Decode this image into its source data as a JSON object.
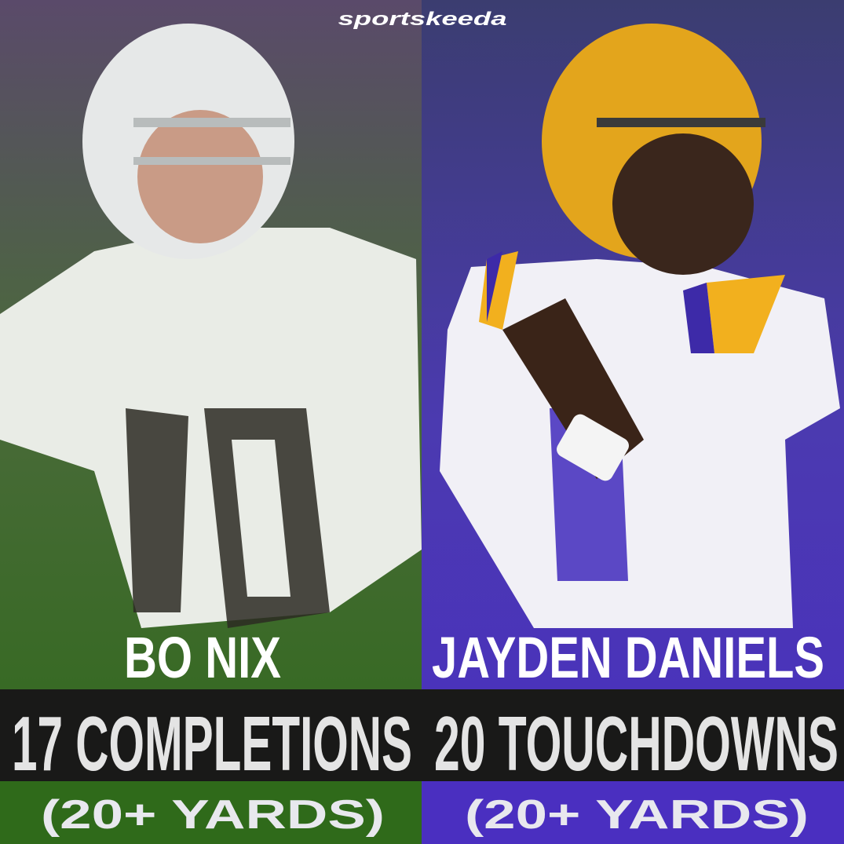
{
  "brand": "sportskeeda",
  "left": {
    "name": "BO NIX",
    "stat": "17 COMPLETIONS",
    "note": "(20+ YARDS)"
  },
  "right": {
    "name": "JAYDEN DANIELS",
    "stat": "20 TOUCHDOWNS",
    "note": "(20+ YARDS)"
  }
}
